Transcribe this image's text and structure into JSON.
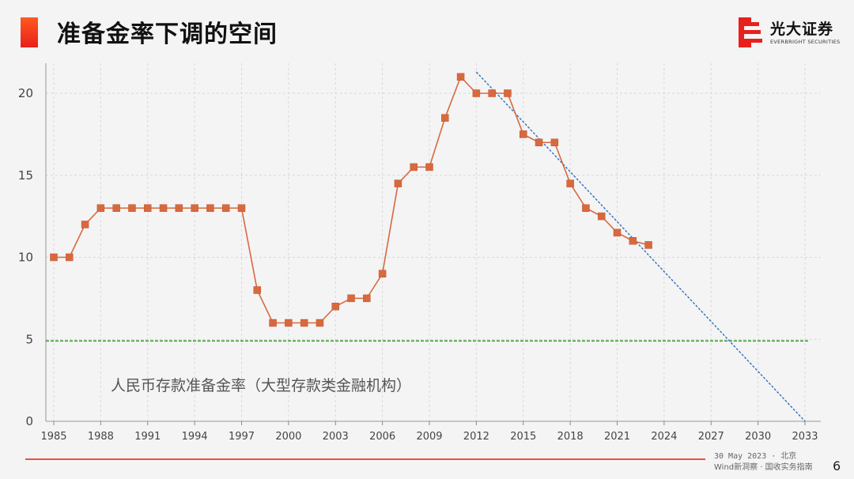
{
  "header": {
    "title": "准备金率下调的空间"
  },
  "logo": {
    "name_cn": "光大证券",
    "name_en": "EVERBRIGHT SECURITIES",
    "accent": "#e8201c"
  },
  "footer": {
    "date_place": "30 May 2023 · 北京",
    "source": "Wind新洞察 · 国收实务指南",
    "page": "6"
  },
  "chart_data": {
    "type": "line",
    "title": "",
    "xlabel": "",
    "ylabel": "",
    "xlim": [
      1985,
      2033
    ],
    "ylim": [
      0,
      22
    ],
    "x_ticks": [
      "1985",
      "1988",
      "1991",
      "1994",
      "1997",
      "2000",
      "2003",
      "2006",
      "2009",
      "2012",
      "2015",
      "2018",
      "2021",
      "2024",
      "2027",
      "2030",
      "2033"
    ],
    "y_ticks": [
      "0",
      "5",
      "10",
      "15",
      "20"
    ],
    "grid": true,
    "annotation": "人民币存款准备金率（大型存款类金融机构）",
    "series": [
      {
        "color": "#d7693f",
        "marker": "square",
        "x": [
          1985,
          1986,
          1987,
          1988,
          1989,
          1990,
          1991,
          1992,
          1993,
          1994,
          1995,
          1996,
          1997,
          1998,
          1999,
          2000,
          2001,
          2002,
          2003,
          2004,
          2005,
          2006,
          2007,
          2008,
          2009,
          2010,
          2011,
          2012,
          2013,
          2014,
          2015,
          2016,
          2017,
          2018,
          2019,
          2020,
          2021,
          2022,
          2023
        ],
        "y": [
          10,
          10,
          12,
          13,
          13,
          13,
          13,
          13,
          13,
          13,
          13,
          13,
          13,
          8,
          6,
          6,
          6,
          6,
          7,
          7.5,
          7.5,
          9,
          14.5,
          15.5,
          15.5,
          18.5,
          21,
          20,
          20,
          20,
          17.5,
          17,
          17,
          14.5,
          13,
          12.5,
          11.5,
          11,
          10.75
        ]
      }
    ],
    "trend_line": {
      "color": "#2f6fc4",
      "style": "dotted",
      "x": [
        2012,
        2033
      ],
      "y": [
        21.3,
        0
      ]
    },
    "reference_line": {
      "color": "#3a9a2a",
      "style": "dashed",
      "y": 4.9
    }
  }
}
